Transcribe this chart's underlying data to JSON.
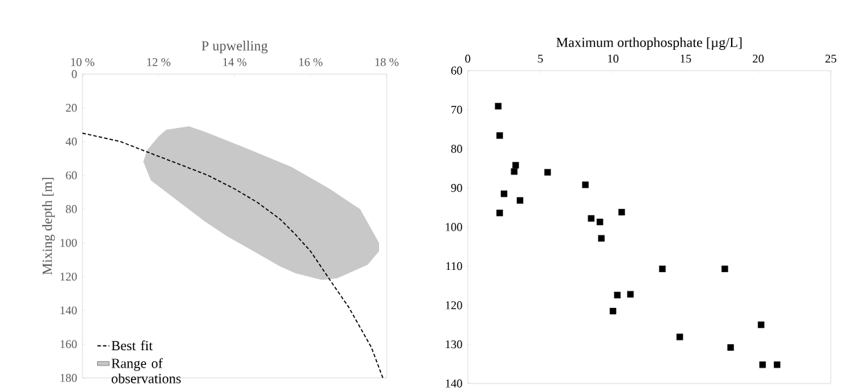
{
  "chart_data": [
    {
      "type": "line",
      "xlabel": "P upwelling",
      "ylabel": "Mixing depth [m]",
      "xlim": [
        10,
        18
      ],
      "xticks": [
        {
          "value": 10,
          "label": "10 %"
        },
        {
          "value": 12,
          "label": "12 %"
        },
        {
          "value": 14,
          "label": "14 %"
        },
        {
          "value": 16,
          "label": "16 %"
        },
        {
          "value": 18,
          "label": "18 %"
        }
      ],
      "ylim": [
        180,
        0
      ],
      "yticks": [
        0,
        20,
        40,
        60,
        80,
        100,
        120,
        140,
        160,
        180
      ],
      "legend": "bottom left",
      "series": [
        {
          "name": "Best fit",
          "type": "line",
          "color": "#000000",
          "line_style": "dashed",
          "x": [
            10,
            11,
            11.8,
            12.5,
            13.3,
            14,
            14.6,
            15.2,
            15.6,
            16,
            16.3,
            16.6,
            17,
            17.3,
            17.6,
            17.9
          ],
          "values": [
            35,
            40,
            47,
            53,
            60,
            68,
            76,
            86,
            95,
            105,
            115,
            125,
            138,
            150,
            162,
            180
          ]
        },
        {
          "name": "Range of observations",
          "type": "area",
          "color": "#c8c8c8",
          "x": [
            12.2,
            12.8,
            13.2,
            14.2,
            15.5,
            16.5,
            17.3,
            17.6,
            17.8,
            17.8,
            17.5,
            16.7,
            16.3,
            15.6,
            15.2,
            14.5,
            13.8,
            13.2,
            12.5,
            11.8,
            11.6,
            11.7,
            12.0
          ],
          "values": [
            33,
            31,
            34,
            43,
            55,
            68,
            80,
            92,
            100,
            105,
            113,
            121,
            122,
            118,
            114,
            105,
            96,
            87,
            75,
            63,
            52,
            45,
            37
          ]
        }
      ]
    },
    {
      "type": "scatter",
      "xlabel": "Maximum orthophosphate [µg/L]",
      "xlim": [
        0,
        25
      ],
      "xticks": [
        0,
        5,
        10,
        15,
        20,
        25
      ],
      "ylim": [
        140,
        60
      ],
      "yticks": [
        60,
        70,
        80,
        90,
        100,
        110,
        120,
        130,
        140
      ],
      "marker": "square",
      "color": "#000000",
      "x": [
        2.1,
        2.2,
        3.3,
        3.2,
        5.5,
        8.1,
        2.5,
        3.6,
        2.2,
        8.5,
        9.1,
        10.6,
        9.2,
        13.4,
        17.7,
        10.3,
        11.2,
        10.0,
        20.2,
        14.6,
        18.1,
        20.3,
        21.3
      ],
      "values": [
        69.1,
        76.6,
        84.2,
        85.8,
        86.0,
        89.2,
        91.5,
        93.2,
        96.4,
        97.8,
        98.7,
        96.2,
        102.9,
        110.7,
        110.7,
        117.4,
        117.2,
        121.5,
        125.0,
        128.1,
        130.8,
        135.2,
        135.2
      ]
    }
  ]
}
